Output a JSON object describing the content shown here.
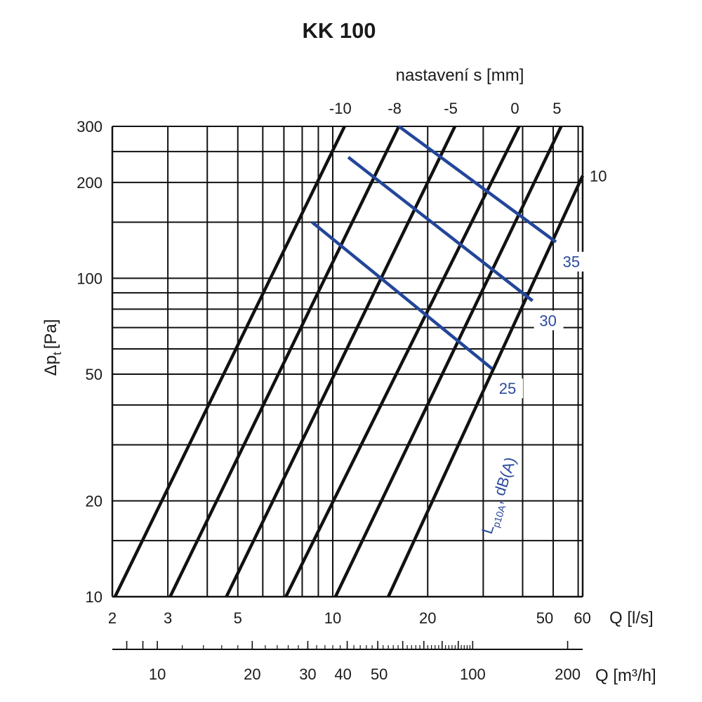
{
  "chart_data": {
    "type": "line",
    "title": "KK 100",
    "top_axis_label": "nastavení s [mm]",
    "xlabel_ls": "Q [l/s]",
    "xlabel_m3h": "Q [m³/h]",
    "ylabel": "Δp",
    "ylabel_sub": "t",
    "ylabel_unit": "[Pa]",
    "x_scale": "log",
    "y_scale": "log",
    "xlim": [
      2,
      62
    ],
    "ylim": [
      10,
      300
    ],
    "grid": true,
    "x_ticks_ls": [
      {
        "v": 2,
        "t": "2"
      },
      {
        "v": 3,
        "t": "3"
      },
      {
        "v": 5,
        "t": "5"
      },
      {
        "v": 10,
        "t": "10"
      },
      {
        "v": 20,
        "t": "20"
      },
      {
        "v": 50,
        "t": "50"
      },
      {
        "v": 60,
        "t": "60"
      }
    ],
    "x_gridlines_ls": [
      2,
      3,
      4,
      5,
      6,
      7,
      8,
      9,
      10,
      20,
      30,
      40,
      50,
      60
    ],
    "x_ticks_m3h": [
      {
        "v": 10,
        "t": "10"
      },
      {
        "v": 20,
        "t": "20"
      },
      {
        "v": 30,
        "t": "30"
      },
      {
        "v": 40,
        "t": "40"
      },
      {
        "v": 50,
        "t": "50"
      },
      {
        "v": 100,
        "t": "100"
      },
      {
        "v": 200,
        "t": "200"
      }
    ],
    "x_minor_m3h": [
      8,
      9,
      10,
      20,
      30,
      40,
      50,
      60,
      70,
      80,
      90,
      100,
      200
    ],
    "y_ticks": [
      {
        "v": 10,
        "t": "10"
      },
      {
        "v": 20,
        "t": "20"
      },
      {
        "v": 50,
        "t": "50"
      },
      {
        "v": 100,
        "t": "100"
      },
      {
        "v": 200,
        "t": "200"
      },
      {
        "v": 300,
        "t": "300"
      }
    ],
    "y_gridlines": [
      10,
      15,
      20,
      30,
      40,
      50,
      60,
      70,
      80,
      90,
      100,
      150,
      200,
      250,
      300
    ],
    "settings_series": [
      {
        "name": "-10",
        "points": [
          [
            2.04,
            10
          ],
          [
            10.9,
            300
          ]
        ]
      },
      {
        "name": "-8",
        "points": [
          [
            3.05,
            10
          ],
          [
            16.2,
            300
          ]
        ]
      },
      {
        "name": "-5",
        "points": [
          [
            4.6,
            10
          ],
          [
            24.4,
            300
          ]
        ]
      },
      {
        "name": "0",
        "points": [
          [
            7.1,
            10
          ],
          [
            39,
            300
          ]
        ]
      },
      {
        "name": "5",
        "points": [
          [
            10.2,
            10
          ],
          [
            53,
            300
          ]
        ]
      },
      {
        "name": "10",
        "points": [
          [
            15,
            10
          ],
          [
            62,
            210
          ]
        ]
      }
    ],
    "noise_series": [
      {
        "name": "35",
        "points": [
          [
            16.2,
            300
          ],
          [
            51,
            130
          ]
        ]
      },
      {
        "name": "30",
        "points": [
          [
            11.2,
            240
          ],
          [
            43,
            85
          ]
        ]
      },
      {
        "name": "25",
        "points": [
          [
            8.6,
            150
          ],
          [
            32,
            52
          ]
        ]
      }
    ],
    "noise_axis_label": "L",
    "noise_axis_label_sub": "p10A",
    "noise_axis_label_rest": ", dB(A)",
    "colors": {
      "lines": "#111111",
      "noise": "#23469a",
      "grid": "#111111"
    }
  }
}
